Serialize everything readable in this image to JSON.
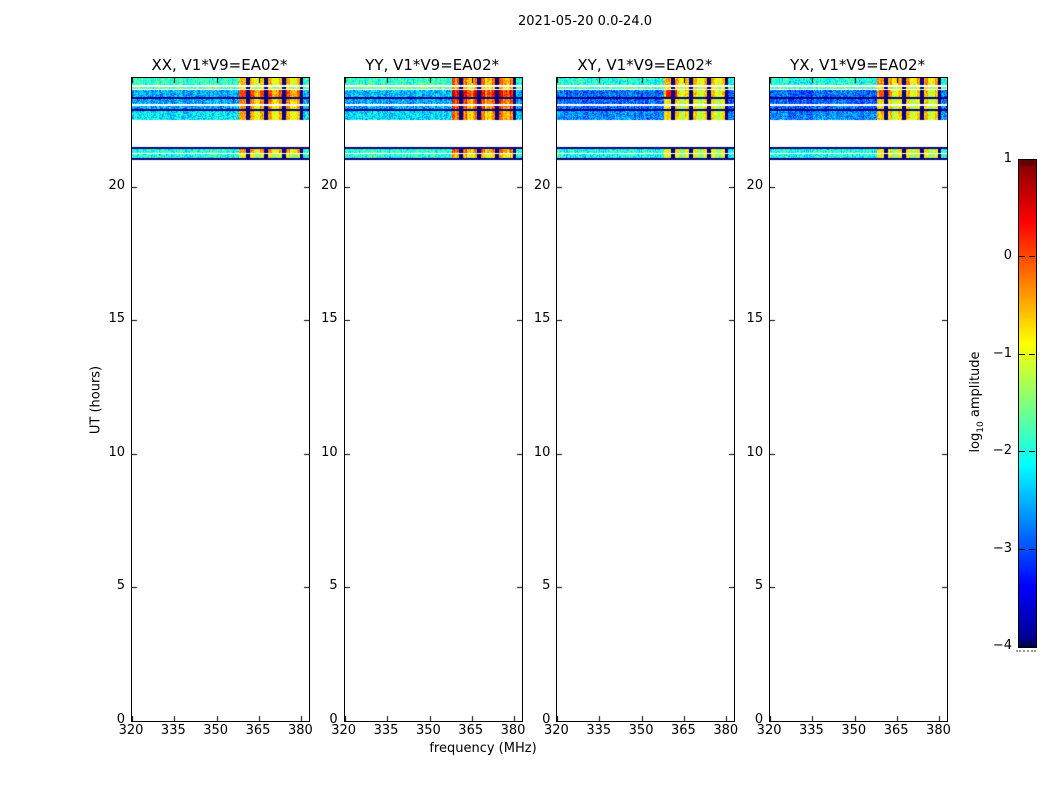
{
  "chart_data": {
    "type": "heatmap",
    "title": "2021-05-20 0.0-24.0",
    "xlabel": "frequency (MHz)",
    "ylabel": "UT (hours)",
    "x_range_mhz": [
      320,
      382.7
    ],
    "y_range_hours": [
      0,
      24.06
    ],
    "x_ticks": [
      320,
      335,
      350,
      365,
      380
    ],
    "y_ticks": [
      0,
      5,
      10,
      15,
      20
    ],
    "grid": false,
    "colorbar": {
      "colormap": "jet",
      "vmin": -4,
      "vmax": 1,
      "label_prefix": "log",
      "label_sub": "10",
      "label_suffix": " amplitude",
      "ticks": [
        {
          "value": 1,
          "label": "1"
        },
        {
          "value": 0,
          "label": "0"
        },
        {
          "value": -1,
          "label": "−1"
        },
        {
          "value": -2,
          "label": "−2"
        },
        {
          "value": -3,
          "label": "−3"
        },
        {
          "value": -4,
          "label": "−4"
        }
      ]
    },
    "rfi_band": {
      "freq_start_mhz": 358.0,
      "freq_end_mhz": 380.5,
      "dark_line_freqs_mhz": [
        361.2,
        367.6,
        374.0,
        380.2
      ],
      "bright_col_freqs_mhz": [
        364.4,
        370.8,
        377.2
      ]
    },
    "band_layout": [
      {
        "id": "A",
        "ut": [
          23.78,
          24.06
        ],
        "kind": "data"
      },
      {
        "id": "A2",
        "ut": [
          23.63,
          23.71
        ],
        "kind": "data"
      },
      {
        "id": "B",
        "ut": [
          23.36,
          23.62
        ],
        "kind": "data"
      },
      {
        "id": "s1",
        "ut": [
          23.29,
          23.36
        ],
        "kind": "navy"
      },
      {
        "id": "C1",
        "ut": [
          23.08,
          23.29
        ],
        "kind": "data"
      },
      {
        "id": "C2",
        "ut": [
          22.9,
          23.02
        ],
        "kind": "data"
      },
      {
        "id": "s2",
        "ut": [
          22.83,
          22.9
        ],
        "kind": "navy"
      },
      {
        "id": "D",
        "ut": [
          22.5,
          22.83
        ],
        "kind": "data"
      },
      {
        "id": "s3",
        "ut": [
          21.42,
          21.49
        ],
        "kind": "navy"
      },
      {
        "id": "E",
        "ut": [
          21.27,
          21.42
        ],
        "kind": "data"
      },
      {
        "id": "F",
        "ut": [
          21.07,
          21.21
        ],
        "kind": "data"
      },
      {
        "id": "s4",
        "ut": [
          21.0,
          21.07
        ],
        "kind": "navy"
      }
    ],
    "panels": [
      {
        "title": "XX, V1*V9=EA02*",
        "amps": {
          "A": [
            -1.85,
            -0.5
          ],
          "A2": [
            -1.6,
            -0.9
          ],
          "B": [
            -2.5,
            0.05
          ],
          "C1": [
            -2.55,
            -0.25
          ],
          "C2": [
            -2.55,
            -0.3
          ],
          "D": [
            -2.2,
            -0.45
          ],
          "E": [
            -1.9,
            -0.35
          ],
          "F": [
            -1.95,
            -0.9
          ]
        },
        "col_jitter": 0.15,
        "spots": []
      },
      {
        "title": "YY, V1*V9=EA02*",
        "amps": {
          "A": [
            -1.9,
            -0.15
          ],
          "A2": [
            -1.6,
            -0.5
          ],
          "B": [
            -2.5,
            0.4
          ],
          "C1": [
            -2.6,
            0.05
          ],
          "C2": [
            -2.6,
            0.0
          ],
          "D": [
            -2.3,
            -0.2
          ],
          "E": [
            -1.9,
            -0.1
          ],
          "F": [
            -1.95,
            -0.6
          ]
        },
        "col_jitter": 0.3,
        "spots": []
      },
      {
        "title": "XY, V1*V9=EA02*",
        "amps": {
          "A": [
            -2.0,
            -0.45
          ],
          "A2": [
            -1.7,
            -0.8
          ],
          "B": [
            -2.85,
            -0.55
          ],
          "C1": [
            -2.9,
            -0.75
          ],
          "C2": [
            -2.9,
            -0.75
          ],
          "D": [
            -2.7,
            -0.65
          ],
          "E": [
            -2.0,
            -0.8
          ],
          "F": [
            -2.05,
            -0.9
          ]
        },
        "col_jitter": 0.15,
        "spots": [
          {
            "band": "B",
            "freq": [
              358.5,
              362.5
            ],
            "amp": 0.3
          }
        ]
      },
      {
        "title": "YX, V1*V9=EA02*",
        "amps": {
          "A": [
            -2.0,
            -0.35
          ],
          "A2": [
            -1.7,
            -0.8
          ],
          "B": [
            -2.85,
            -0.55
          ],
          "C1": [
            -2.9,
            -0.7
          ],
          "C2": [
            -2.9,
            -0.7
          ],
          "D": [
            -2.7,
            -0.6
          ],
          "E": [
            -2.0,
            -0.75
          ],
          "F": [
            -2.05,
            -0.85
          ]
        },
        "col_jitter": 0.15,
        "spots": [
          {
            "band": "B",
            "freq": [
              358.5,
              362.5
            ],
            "amp": 0.0
          }
        ]
      }
    ],
    "notes": "Visibility amplitude dynamic spectra; data only near UT 21.0-21.4 and 22.5-24.0, elsewhere masked white."
  }
}
